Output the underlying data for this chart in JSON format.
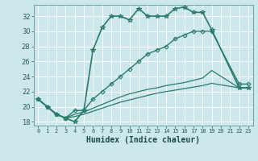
{
  "xlabel": "Humidex (Indice chaleur)",
  "bg_color": "#cce8ec",
  "grid_color": "#ffffff",
  "line_color": "#2a7a6a",
  "xlim": [
    -0.5,
    23.5
  ],
  "ylim": [
    17.5,
    33.5
  ],
  "yticks": [
    18,
    20,
    22,
    24,
    26,
    28,
    30,
    32
  ],
  "xticks": [
    0,
    1,
    2,
    3,
    4,
    5,
    6,
    7,
    8,
    9,
    10,
    11,
    12,
    13,
    14,
    15,
    16,
    17,
    18,
    19,
    20,
    21,
    22,
    23
  ],
  "lines": [
    {
      "x": [
        0,
        1,
        2,
        3,
        4,
        5,
        6,
        7,
        8,
        9,
        10,
        11,
        12,
        13,
        14,
        15,
        16,
        17,
        18,
        19,
        22,
        23
      ],
      "y": [
        21,
        20,
        19,
        18.5,
        18,
        19.5,
        27.5,
        30.5,
        32,
        32,
        31.5,
        33,
        32,
        32,
        32,
        33,
        33.2,
        32.5,
        32.5,
        30.2,
        22.5,
        22.5
      ],
      "marker": "*",
      "markersize": 4,
      "linewidth": 1.2
    },
    {
      "x": [
        0,
        1,
        2,
        3,
        4,
        5,
        6,
        7,
        8,
        9,
        10,
        11,
        12,
        13,
        14,
        15,
        16,
        17,
        18,
        19,
        22,
        23
      ],
      "y": [
        21,
        20,
        19,
        18.5,
        19.5,
        19.5,
        21,
        22,
        23,
        24,
        25,
        26,
        27,
        27.5,
        28,
        29,
        29.5,
        30,
        30,
        30,
        23,
        23
      ],
      "marker": "D",
      "markersize": 2.5,
      "linewidth": 1.0
    },
    {
      "x": [
        0,
        1,
        2,
        3,
        4,
        5,
        6,
        7,
        8,
        9,
        10,
        11,
        12,
        13,
        14,
        15,
        16,
        17,
        18,
        19,
        22,
        23
      ],
      "y": [
        21,
        20,
        19,
        18.5,
        19,
        19.3,
        19.8,
        20.3,
        20.8,
        21.3,
        21.7,
        22.0,
        22.3,
        22.5,
        22.8,
        23.0,
        23.2,
        23.5,
        23.8,
        24.8,
        22.5,
        22.5
      ],
      "marker": null,
      "markersize": 0,
      "linewidth": 0.9
    },
    {
      "x": [
        0,
        1,
        2,
        3,
        4,
        5,
        6,
        7,
        8,
        9,
        10,
        11,
        12,
        13,
        14,
        15,
        16,
        17,
        18,
        19,
        22,
        23
      ],
      "y": [
        21,
        20,
        19,
        18.5,
        18.7,
        19.0,
        19.4,
        19.8,
        20.2,
        20.6,
        20.9,
        21.2,
        21.5,
        21.8,
        22.0,
        22.2,
        22.4,
        22.6,
        22.8,
        23.1,
        22.5,
        22.5
      ],
      "marker": null,
      "markersize": 0,
      "linewidth": 0.9
    }
  ]
}
